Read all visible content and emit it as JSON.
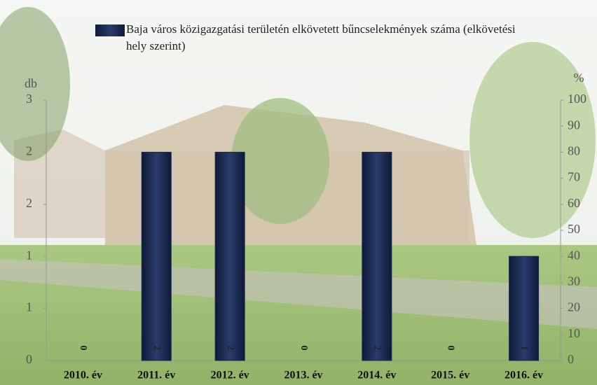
{
  "chart_data": {
    "type": "bar",
    "categories": [
      "2010. év",
      "2011. év",
      "2012. év",
      "2013. év",
      "2014. év",
      "2015. év",
      "2016. év"
    ],
    "series": [
      {
        "name": "Baja város közigazgatási területén elkövetett bűncselekmények száma (elkövetési hely szerint)",
        "color": "#1b2a52",
        "values": [
          0,
          2,
          2,
          0,
          2,
          0,
          1
        ]
      }
    ],
    "y_label": "db",
    "y2_label": "%",
    "ylim": [
      0,
      2.5
    ],
    "yticks": [
      {
        "value": 0,
        "label": "0"
      },
      {
        "value": 0.5,
        "label": "1"
      },
      {
        "value": 1,
        "label": "1"
      },
      {
        "value": 1.5,
        "label": "2"
      },
      {
        "value": 2,
        "label": "2"
      },
      {
        "value": 2.5,
        "label": "3"
      }
    ],
    "y2lim": [
      0,
      100
    ],
    "y2ticks": [
      0,
      10,
      20,
      30,
      40,
      50,
      60,
      70,
      80,
      90,
      100
    ],
    "grid": false
  }
}
